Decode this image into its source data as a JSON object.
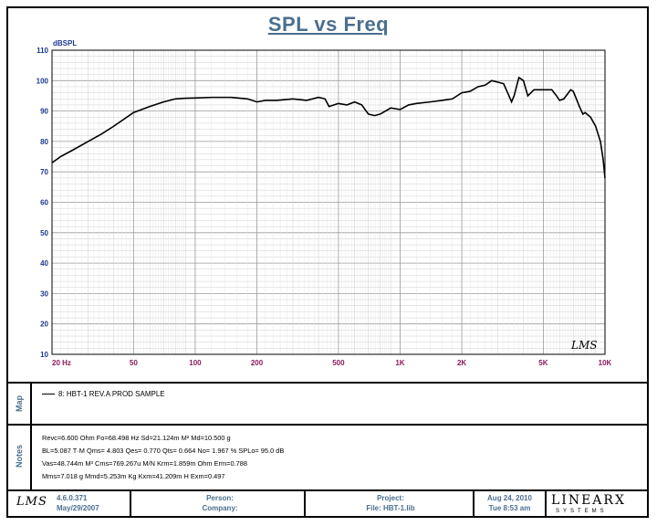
{
  "title": "SPL vs Freq",
  "chart_data": {
    "type": "line",
    "title": "SPL vs Freq",
    "ylabel": "dBSPL",
    "xscale": "log",
    "xlim": [
      20,
      10000
    ],
    "ylim": [
      10,
      110
    ],
    "grid": true,
    "x_ticks": [
      {
        "value": 20,
        "label": "20  Hz"
      },
      {
        "value": 50,
        "label": "50"
      },
      {
        "value": 100,
        "label": "100"
      },
      {
        "value": 200,
        "label": "200"
      },
      {
        "value": 500,
        "label": "500"
      },
      {
        "value": 1000,
        "label": "1K"
      },
      {
        "value": 2000,
        "label": "2K"
      },
      {
        "value": 5000,
        "label": "5K"
      },
      {
        "value": 10000,
        "label": "10K"
      }
    ],
    "y_ticks": [
      10,
      20,
      30,
      40,
      50,
      60,
      70,
      80,
      90,
      100,
      110
    ],
    "series": [
      {
        "name": "8: HBT-1 REV.A PROD SAMPLE",
        "color": "#000000",
        "x": [
          20,
          21,
          22,
          25,
          30,
          35,
          40,
          50,
          60,
          70,
          80,
          90,
          100,
          120,
          150,
          180,
          200,
          220,
          250,
          300,
          350,
          400,
          430,
          450,
          500,
          550,
          600,
          650,
          700,
          750,
          800,
          900,
          1000,
          1100,
          1200,
          1400,
          1600,
          1800,
          2000,
          2200,
          2400,
          2600,
          2800,
          3000,
          3200,
          3400,
          3500,
          3600,
          3800,
          4000,
          4200,
          4500,
          5000,
          5500,
          5800,
          6000,
          6300,
          6800,
          7000,
          7500,
          7800,
          8000,
          8500,
          9000,
          9500,
          9800,
          10000
        ],
        "y": [
          73,
          74,
          75,
          77,
          80,
          82.5,
          85,
          89.5,
          91.5,
          93,
          94,
          94.2,
          94.3,
          94.5,
          94.5,
          94,
          93,
          93.5,
          93.5,
          94,
          93.5,
          94.5,
          94,
          91.5,
          92.5,
          92,
          93,
          92,
          89,
          88.5,
          89,
          91,
          90.5,
          92,
          92.5,
          93,
          93.5,
          94,
          96,
          96.5,
          98,
          98.5,
          100,
          99.5,
          99,
          95,
          93,
          95,
          101,
          100,
          95,
          97,
          97,
          97,
          95,
          93.5,
          94,
          97,
          96.5,
          91.5,
          89,
          89.5,
          88,
          85,
          80,
          74,
          68
        ]
      }
    ]
  },
  "map": {
    "label": "Map",
    "legend": "8: HBT-1 REV.A PROD SAMPLE"
  },
  "notes": {
    "label": "Notes",
    "lines": [
      "Revc=6.600  Ohm   Fo=68.498  Hz   Sd=21.124m  M² Md=10.500  g",
      "BL=5.087  T·M   Qms= 4.803   Qes= 0.770   Qts= 0.664   No= 1.967 %   SPLo= 95.0 dB",
      "Vas=48.744m  M³  Cms=769.267u  M/N   Krm=1.859m  Ohm   Erm=0.788",
      "Mms=7.018  g   Mmd=5.253m  Kg   Kxm=41.209m  H   Exm=0.497"
    ]
  },
  "footer": {
    "lms_logo": "LMS",
    "version": "4.6.0.371",
    "build_date": "May/29/2007",
    "person_label": "Person:",
    "company_label": "Company:",
    "project_label": "Project:",
    "file_label": "File: HBT-1.lib",
    "date": "Aug 24, 2010",
    "time": "Tue  8:53 am",
    "brand": "LINEARX",
    "brand_sub": "SYSTEMS"
  },
  "watermark": "LMS",
  "colors": {
    "axis_label": "#8b1a5a",
    "y_tick": "#1a3a8f",
    "title": "#4a6f8f",
    "grid_major": "#9a9a9a",
    "grid_minor": "#cfcfcf"
  }
}
